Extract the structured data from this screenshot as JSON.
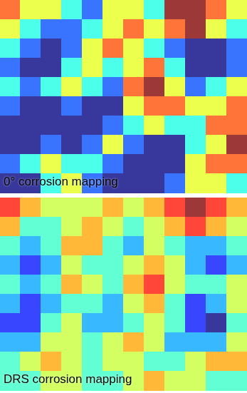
{
  "chart_data": [
    {
      "type": "heatmap",
      "title": "0° corrosion mapping",
      "tick_labels": false,
      "cells": [
        [
          7,
          6,
          6,
          5,
          4,
          6,
          6,
          5,
          8,
          8,
          7,
          6
        ],
        [
          6,
          5,
          4,
          4,
          5,
          6,
          7,
          6,
          7,
          8,
          6,
          5
        ],
        [
          5,
          4,
          3,
          4,
          6,
          7,
          6,
          5,
          4,
          3,
          3,
          4
        ],
        [
          4,
          3,
          3,
          5,
          6,
          5,
          6,
          7,
          5,
          3,
          3,
          4
        ],
        [
          5,
          4,
          5,
          6,
          5,
          4,
          7,
          8,
          6,
          4,
          5,
          6
        ],
        [
          4,
          3,
          3,
          4,
          3,
          3,
          6,
          7,
          7,
          6,
          6,
          7
        ],
        [
          3,
          3,
          3,
          3,
          3,
          4,
          5,
          6,
          5,
          5,
          7,
          7
        ],
        [
          3,
          3,
          4,
          3,
          4,
          6,
          4,
          3,
          3,
          5,
          6,
          8
        ],
        [
          4,
          5,
          6,
          5,
          5,
          4,
          3,
          3,
          3,
          6,
          7,
          7
        ],
        [
          3,
          3,
          5,
          6,
          4,
          3,
          3,
          3,
          4,
          6,
          6,
          5
        ]
      ]
    },
    {
      "type": "heatmap",
      "title": "DRS corrosion mapping",
      "tick_labels": false,
      "cells": [
        [
          7,
          6,
          5,
          5,
          5,
          6,
          5,
          6,
          7,
          8,
          7,
          6
        ],
        [
          6,
          4,
          4,
          5,
          6,
          5,
          4,
          5,
          6,
          7,
          6,
          5
        ],
        [
          4,
          3,
          4,
          6,
          6,
          4,
          3,
          5,
          4,
          3,
          3,
          4
        ],
        [
          3,
          2,
          3,
          5,
          4,
          4,
          5,
          6,
          5,
          3,
          2,
          3
        ],
        [
          4,
          3,
          4,
          6,
          5,
          4,
          6,
          7,
          5,
          4,
          4,
          5
        ],
        [
          3,
          2,
          3,
          4,
          4,
          3,
          5,
          6,
          4,
          2,
          3,
          5
        ],
        [
          2,
          2,
          4,
          5,
          3,
          3,
          4,
          5,
          4,
          2,
          1,
          4
        ],
        [
          3,
          3,
          5,
          5,
          4,
          5,
          6,
          5,
          3,
          3,
          3,
          5
        ],
        [
          4,
          5,
          6,
          5,
          4,
          5,
          5,
          4,
          4,
          5,
          6,
          6
        ],
        [
          4,
          4,
          5,
          5,
          4,
          4,
          5,
          6,
          5,
          5,
          4,
          4
        ]
      ]
    }
  ]
}
